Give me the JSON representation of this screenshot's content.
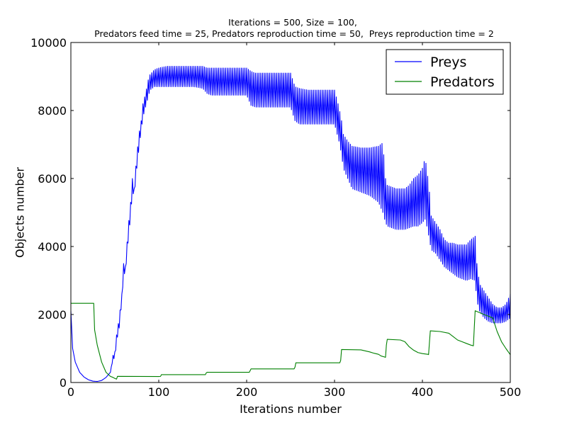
{
  "chart_data": {
    "type": "line",
    "title_line1": "Iterations = 500, Size = 100,",
    "title_line2": " Predators feed time = 25, Predators reproduction time = 50,  Preys reproduction time = 2",
    "xlabel": "Iterations number",
    "ylabel": "Objects number",
    "xlim": [
      0,
      500
    ],
    "ylim": [
      0,
      10000
    ],
    "xticks": [
      0,
      100,
      200,
      300,
      400,
      500
    ],
    "yticks": [
      0,
      2000,
      4000,
      6000,
      8000,
      10000
    ],
    "legend_position": "top-right",
    "series": [
      {
        "name": "Preys",
        "color": "#0000ff",
        "oscillating": true,
        "envelope": {
          "x": [
            0,
            2,
            5,
            10,
            15,
            20,
            25,
            30,
            35,
            40,
            45,
            48,
            50,
            52,
            55,
            58,
            60,
            62,
            65,
            68,
            70,
            72,
            75,
            78,
            80,
            82,
            85,
            88,
            90,
            95,
            100,
            105,
            110,
            120,
            130,
            140,
            150,
            155,
            160,
            170,
            180,
            190,
            200,
            205,
            210,
            220,
            230,
            240,
            250,
            255,
            260,
            270,
            280,
            290,
            300,
            305,
            308,
            310,
            315,
            320,
            330,
            340,
            350,
            355,
            358,
            360,
            365,
            370,
            380,
            385,
            390,
            395,
            400,
            403,
            405,
            408,
            410,
            415,
            420,
            425,
            430,
            435,
            440,
            450,
            455,
            460,
            462,
            465,
            470,
            475,
            480,
            485,
            490,
            495,
            500
          ],
          "high": [
            2100,
            1000,
            600,
            300,
            160,
            80,
            40,
            30,
            60,
            150,
            300,
            800,
            900,
            1400,
            1900,
            2600,
            3500,
            3400,
            4500,
            5300,
            6000,
            5700,
            6700,
            7400,
            7700,
            8200,
            8500,
            8900,
            9050,
            9200,
            9250,
            9280,
            9300,
            9300,
            9300,
            9300,
            9300,
            9250,
            9250,
            9250,
            9250,
            9250,
            9250,
            9150,
            9100,
            9100,
            9100,
            9100,
            9100,
            8700,
            8650,
            8600,
            8600,
            8600,
            8600,
            8100,
            7700,
            7300,
            7100,
            6950,
            6900,
            6900,
            6950,
            7050,
            6000,
            5800,
            5750,
            5700,
            5700,
            5800,
            6000,
            6100,
            6300,
            6600,
            6300,
            5600,
            4900,
            4700,
            4500,
            4200,
            4100,
            4100,
            4050,
            4050,
            4200,
            4300,
            3500,
            2900,
            2700,
            2500,
            2300,
            2200,
            2200,
            2300,
            2600
          ],
          "low": [
            2100,
            1000,
            600,
            300,
            160,
            80,
            40,
            30,
            60,
            150,
            300,
            700,
            700,
            1200,
            1600,
            2400,
            3200,
            3200,
            4100,
            4900,
            5600,
            5500,
            6300,
            7000,
            7400,
            7800,
            8100,
            8400,
            8600,
            8700,
            8700,
            8700,
            8700,
            8700,
            8700,
            8700,
            8650,
            8500,
            8450,
            8450,
            8450,
            8450,
            8450,
            8150,
            8100,
            8100,
            8100,
            8100,
            8100,
            7700,
            7600,
            7600,
            7600,
            7600,
            7600,
            7100,
            6700,
            6300,
            6000,
            5700,
            5600,
            5500,
            5300,
            5000,
            4700,
            4600,
            4550,
            4500,
            4500,
            4550,
            4600,
            4600,
            4700,
            4800,
            4600,
            4200,
            3900,
            3800,
            3600,
            3400,
            3300,
            3200,
            3100,
            3000,
            3050,
            3000,
            2400,
            2100,
            1900,
            1800,
            1750,
            1750,
            1750,
            1800,
            1900
          ]
        }
      },
      {
        "name": "Predators",
        "color": "#008000",
        "x": [
          0,
          26,
          27,
          30,
          35,
          40,
          45,
          48,
          50,
          52,
          53,
          100,
          102,
          103,
          153,
          154,
          155,
          203,
          204,
          205,
          254,
          255,
          256,
          306,
          307,
          308,
          330,
          340,
          345,
          350,
          353,
          357,
          358,
          359,
          360,
          375,
          380,
          385,
          390,
          395,
          400,
          406,
          407,
          408,
          409,
          420,
          430,
          435,
          440,
          445,
          450,
          455,
          458,
          459,
          460,
          461,
          470,
          475,
          480,
          485,
          490,
          495,
          500
        ],
        "values": [
          2330,
          2330,
          1550,
          1100,
          600,
          300,
          180,
          150,
          120,
          100,
          180,
          175,
          180,
          230,
          230,
          280,
          300,
          300,
          350,
          400,
          400,
          450,
          580,
          580,
          650,
          970,
          960,
          900,
          860,
          830,
          780,
          750,
          740,
          1100,
          1270,
          1250,
          1200,
          1050,
          950,
          880,
          850,
          830,
          820,
          1180,
          1520,
          1500,
          1450,
          1350,
          1250,
          1200,
          1150,
          1100,
          1080,
          1600,
          2110,
          2100,
          2000,
          1950,
          1900,
          1500,
          1200,
          1000,
          820
        ]
      }
    ]
  }
}
